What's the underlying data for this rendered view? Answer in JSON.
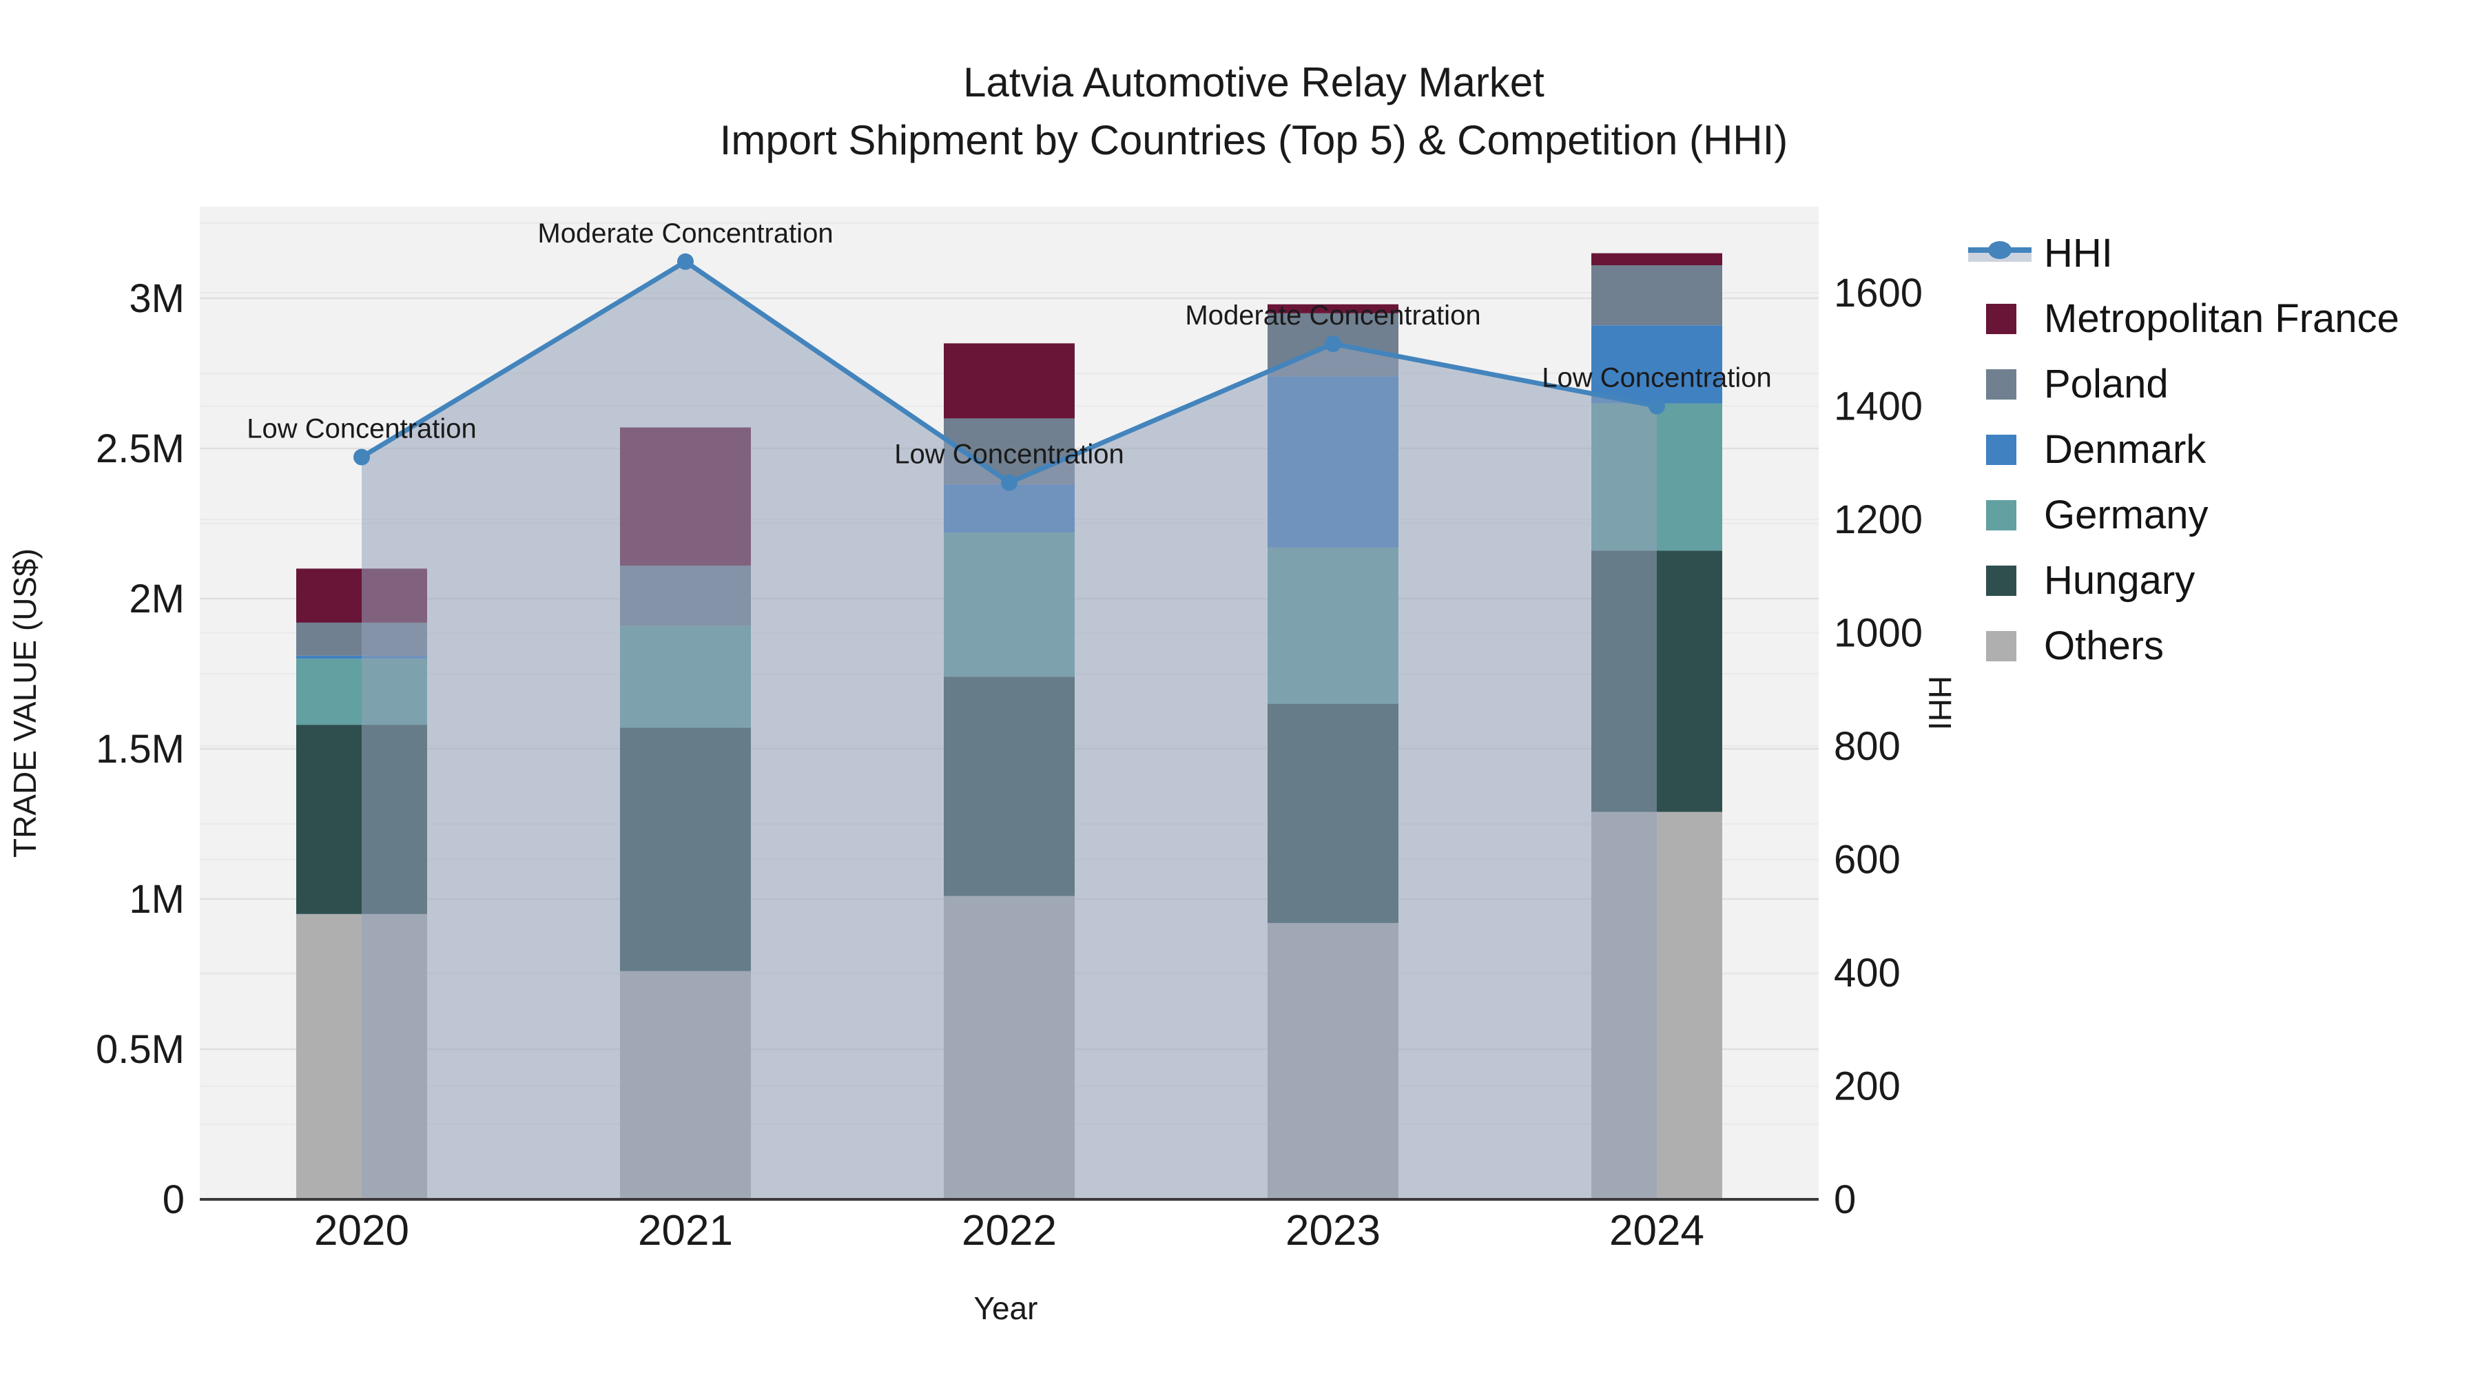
{
  "title": {
    "line1": "Latvia Automotive Relay Market",
    "line2": "Import Shipment by Countries (Top 5) & Competition (HHI)"
  },
  "chart_data": {
    "type": "combo-stacked-bar-line",
    "categories": [
      "2020",
      "2021",
      "2022",
      "2023",
      "2024"
    ],
    "xlabel": "Year",
    "ylabel_left": "TRADE VALUE (US$)",
    "ylabel_right": "HHI",
    "units_left": "millions of US$",
    "ylim_left": [
      0,
      3.305
    ],
    "ylim_right": [
      0,
      1752
    ],
    "yticks_left": [
      {
        "v": 0,
        "label": "0"
      },
      {
        "v": 0.5,
        "label": "0.5M"
      },
      {
        "v": 1,
        "label": "1M"
      },
      {
        "v": 1.5,
        "label": "1.5M"
      },
      {
        "v": 2,
        "label": "2M"
      },
      {
        "v": 2.5,
        "label": "2.5M"
      },
      {
        "v": 3,
        "label": "3M"
      }
    ],
    "yticks_right": [
      0,
      200,
      400,
      600,
      800,
      1000,
      1200,
      1400,
      1600
    ],
    "grid": true,
    "plot_bg": "#f2f2f2",
    "bar_series": [
      {
        "name": "Others",
        "color": "#b0afaf",
        "values": [
          0.95,
          0.76,
          1.01,
          0.92,
          1.29
        ]
      },
      {
        "name": "Hungary",
        "color": "#2f4f4f",
        "values": [
          0.63,
          0.81,
          0.73,
          0.73,
          0.87
        ]
      },
      {
        "name": "Germany",
        "color": "#62a0a1",
        "values": [
          0.22,
          0.34,
          0.48,
          0.52,
          0.49
        ]
      },
      {
        "name": "Denmark",
        "color": "#4081c2",
        "values": [
          0.01,
          0.0,
          0.16,
          0.57,
          0.26
        ]
      },
      {
        "name": "Poland",
        "color": "#708090",
        "values": [
          0.11,
          0.2,
          0.22,
          0.21,
          0.2
        ]
      },
      {
        "name": "Metropolitan France",
        "color": "#681537",
        "values": [
          0.18,
          0.46,
          0.25,
          0.03,
          0.04
        ]
      }
    ],
    "bar_totals": [
      2.1,
      2.57,
      2.85,
      2.98,
      3.15
    ],
    "line_series": {
      "name": "HHI",
      "color": "#4384bd",
      "area_color": "rgba(150,162,185,0.55)",
      "values": [
        1310,
        1655,
        1265,
        1510,
        1400
      ]
    },
    "annotations": [
      {
        "year": "2020",
        "text": "Low Concentration"
      },
      {
        "year": "2021",
        "text": "Moderate Concentration"
      },
      {
        "year": "2022",
        "text": "Low Concentration"
      },
      {
        "year": "2023",
        "text": "Moderate Concentration"
      },
      {
        "year": "2024",
        "text": "Low Concentration"
      }
    ],
    "legend_position": "right"
  },
  "legend": {
    "items": [
      {
        "label": "HHI",
        "type": "line",
        "color": "#4384bd",
        "band": "#cdd3de"
      },
      {
        "label": "Metropolitan France",
        "type": "swatch",
        "color": "#681537"
      },
      {
        "label": "Poland",
        "type": "swatch",
        "color": "#708090"
      },
      {
        "label": "Denmark",
        "type": "swatch",
        "color": "#4081c2"
      },
      {
        "label": "Germany",
        "type": "swatch",
        "color": "#62a0a1"
      },
      {
        "label": "Hungary",
        "type": "swatch",
        "color": "#2f4f4f"
      },
      {
        "label": "Others",
        "type": "swatch",
        "color": "#b0afaf"
      }
    ]
  }
}
